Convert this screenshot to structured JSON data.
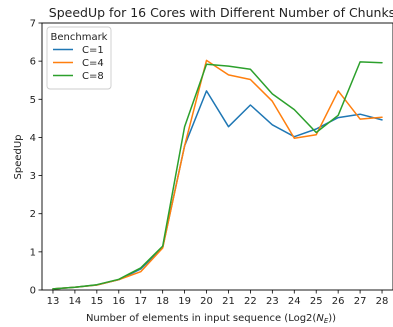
{
  "chart_data": {
    "type": "line",
    "title": "SpeedUp for 16 Cores with Different Number of Chunks",
    "xlabel": "Number of elements in input sequence (Log2(",
    "xlabel_symbol": "N",
    "xlabel_sub": "E",
    "xlabel_end": "))",
    "ylabel": "SpeedUp",
    "x": [
      13,
      14,
      15,
      16,
      17,
      18,
      19,
      20,
      21,
      22,
      23,
      24,
      25,
      26,
      27,
      28
    ],
    "xlim": [
      12.5,
      28.5
    ],
    "ylim": [
      0,
      7
    ],
    "yticks": [
      0,
      1,
      2,
      3,
      4,
      5,
      6,
      7
    ],
    "grid": false,
    "legend": {
      "title": "Benchmark",
      "placement": "top-left"
    },
    "series": [
      {
        "name": "C=1",
        "color": "#1f77b4",
        "values": [
          0.03,
          0.07,
          0.13,
          0.27,
          0.55,
          1.12,
          3.78,
          5.22,
          4.28,
          4.85,
          4.33,
          4.02,
          4.22,
          4.52,
          4.61,
          4.46
        ]
      },
      {
        "name": "C=4",
        "color": "#ff7f0e",
        "values": [
          0.03,
          0.07,
          0.13,
          0.27,
          0.48,
          1.1,
          3.78,
          6.02,
          5.64,
          5.52,
          4.95,
          3.98,
          4.07,
          5.22,
          4.48,
          4.53
        ]
      },
      {
        "name": "C=8",
        "color": "#2ca02c",
        "values": [
          0.03,
          0.07,
          0.14,
          0.28,
          0.58,
          1.15,
          4.28,
          5.92,
          5.87,
          5.79,
          5.14,
          4.73,
          4.13,
          4.58,
          5.98,
          5.96
        ]
      }
    ]
  }
}
